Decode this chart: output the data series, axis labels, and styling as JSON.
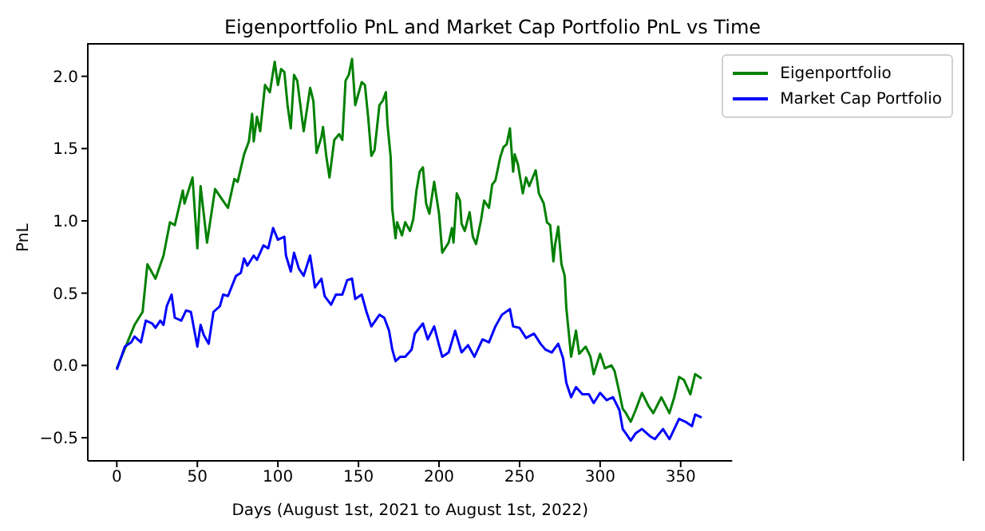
{
  "chart_data": {
    "type": "line",
    "title": "Eigenportfolio PnL and Market Cap Portfolio PnL vs Time",
    "xlabel": "Days (August 1st, 2021 to August 1st, 2022)",
    "ylabel": "PnL",
    "xlim": [
      -18,
      382
    ],
    "xticks": [
      0,
      50,
      100,
      150,
      200,
      250,
      300,
      350
    ],
    "ylim": [
      -0.66,
      2.23
    ],
    "yticks": [
      {
        "value": -0.5,
        "label": "−0.5"
      },
      {
        "value": 0,
        "label": "0.0"
      },
      {
        "value": 0.5,
        "label": "0.5"
      },
      {
        "value": 1,
        "label": "1.0"
      },
      {
        "value": 1.5,
        "label": "1.5"
      },
      {
        "value": 2,
        "label": "2.0"
      }
    ],
    "grid": false,
    "legend": "top right",
    "marker": "none",
    "line_style": "solid",
    "series": [
      {
        "name": "Eigenportfolio",
        "color": "#008000",
        "x": [
          0,
          11,
          16,
          19,
          24,
          29,
          33,
          36,
          41,
          42,
          47,
          50,
          52,
          56,
          61,
          64,
          69,
          73,
          75,
          79,
          82,
          84,
          85,
          87,
          89,
          92,
          95,
          98,
          100,
          102,
          104,
          106,
          108,
          110,
          112,
          116,
          120,
          122,
          124,
          127,
          128,
          130,
          132,
          135,
          138,
          140,
          142,
          144,
          146,
          148,
          152,
          154,
          156,
          158,
          160,
          163,
          165,
          167,
          168,
          170,
          171,
          173,
          174,
          177,
          179,
          182,
          184,
          186,
          188,
          190,
          192,
          194,
          197,
          200,
          202,
          206,
          208,
          209,
          211,
          213,
          214,
          216,
          219,
          221,
          223,
          226,
          228,
          231,
          233,
          235,
          238,
          240,
          242,
          244,
          246,
          247,
          249,
          252,
          254,
          256,
          260,
          262,
          265,
          267,
          269,
          271,
          272,
          274,
          276,
          278,
          279,
          282,
          285,
          287,
          291,
          294,
          296,
          300,
          303,
          307,
          309,
          312,
          314,
          316,
          319,
          322,
          326,
          330,
          333,
          338,
          343,
          346,
          349,
          352,
          356,
          359,
          363
        ],
        "values": [
          -0.02,
          0.28,
          0.37,
          0.7,
          0.6,
          0.76,
          0.99,
          0.97,
          1.21,
          1.12,
          1.3,
          0.81,
          1.24,
          0.85,
          1.22,
          1.17,
          1.09,
          1.29,
          1.27,
          1.46,
          1.55,
          1.74,
          1.55,
          1.72,
          1.62,
          1.94,
          1.89,
          2.1,
          1.94,
          2.05,
          2.03,
          1.8,
          1.64,
          2.01,
          1.97,
          1.62,
          1.92,
          1.83,
          1.47,
          1.58,
          1.65,
          1.45,
          1.3,
          1.56,
          1.6,
          1.56,
          1.97,
          2.01,
          2.12,
          1.8,
          1.96,
          1.94,
          1.72,
          1.45,
          1.49,
          1.8,
          1.83,
          1.89,
          1.67,
          1.44,
          1.08,
          0.88,
          0.99,
          0.9,
          0.99,
          0.93,
          1.01,
          1.21,
          1.34,
          1.37,
          1.12,
          1.05,
          1.27,
          1.05,
          0.78,
          0.85,
          0.95,
          0.85,
          1.19,
          1.14,
          0.98,
          0.93,
          1.06,
          0.89,
          0.84,
          1.0,
          1.14,
          1.09,
          1.25,
          1.28,
          1.44,
          1.51,
          1.53,
          1.64,
          1.34,
          1.46,
          1.39,
          1.19,
          1.3,
          1.24,
          1.35,
          1.19,
          1.12,
          0.99,
          0.97,
          0.72,
          0.83,
          0.96,
          0.7,
          0.62,
          0.4,
          0.06,
          0.24,
          0.08,
          0.13,
          0.06,
          -0.06,
          0.08,
          -0.02,
          0.0,
          -0.04,
          -0.19,
          -0.3,
          -0.33,
          -0.39,
          -0.31,
          -0.19,
          -0.28,
          -0.33,
          -0.22,
          -0.33,
          -0.22,
          -0.08,
          -0.1,
          -0.2,
          -0.06,
          -0.09
        ]
      },
      {
        "name": "Market Cap Portfolio",
        "color": "#0000ff",
        "x": [
          0,
          5,
          9,
          11,
          15,
          18,
          22,
          24,
          27,
          29,
          31,
          34,
          36,
          40,
          43,
          46,
          50,
          52,
          54,
          57,
          60,
          64,
          66,
          69,
          74,
          77,
          79,
          81,
          85,
          87,
          91,
          94,
          97,
          100,
          104,
          105,
          108,
          110,
          113,
          116,
          120,
          123,
          127,
          129,
          133,
          136,
          140,
          143,
          146,
          148,
          152,
          155,
          158,
          163,
          166,
          169,
          171,
          173,
          176,
          179,
          183,
          185,
          190,
          193,
          197,
          200,
          202,
          206,
          210,
          214,
          218,
          222,
          227,
          231,
          235,
          239,
          244,
          246,
          250,
          254,
          259,
          263,
          266,
          270,
          274,
          277,
          279,
          282,
          285,
          289,
          293,
          296,
          300,
          304,
          308,
          312,
          314,
          316,
          319,
          322,
          326,
          331,
          334,
          339,
          343,
          346,
          349,
          353,
          357,
          359,
          363
        ],
        "values": [
          -0.03,
          0.13,
          0.16,
          0.2,
          0.16,
          0.31,
          0.29,
          0.26,
          0.31,
          0.28,
          0.41,
          0.49,
          0.33,
          0.31,
          0.38,
          0.37,
          0.13,
          0.28,
          0.21,
          0.15,
          0.37,
          0.41,
          0.49,
          0.48,
          0.62,
          0.64,
          0.74,
          0.69,
          0.76,
          0.73,
          0.83,
          0.81,
          0.95,
          0.87,
          0.89,
          0.76,
          0.65,
          0.78,
          0.67,
          0.62,
          0.76,
          0.54,
          0.6,
          0.48,
          0.42,
          0.49,
          0.49,
          0.59,
          0.6,
          0.46,
          0.49,
          0.37,
          0.27,
          0.35,
          0.33,
          0.24,
          0.11,
          0.03,
          0.06,
          0.06,
          0.11,
          0.22,
          0.29,
          0.18,
          0.27,
          0.14,
          0.06,
          0.09,
          0.24,
          0.09,
          0.14,
          0.06,
          0.18,
          0.16,
          0.27,
          0.35,
          0.39,
          0.27,
          0.26,
          0.19,
          0.22,
          0.15,
          0.11,
          0.09,
          0.15,
          0.05,
          -0.12,
          -0.22,
          -0.15,
          -0.2,
          -0.2,
          -0.26,
          -0.19,
          -0.24,
          -0.22,
          -0.31,
          -0.44,
          -0.47,
          -0.52,
          -0.47,
          -0.44,
          -0.49,
          -0.51,
          -0.44,
          -0.51,
          -0.44,
          -0.37,
          -0.39,
          -0.42,
          -0.34,
          -0.36
        ]
      }
    ]
  }
}
